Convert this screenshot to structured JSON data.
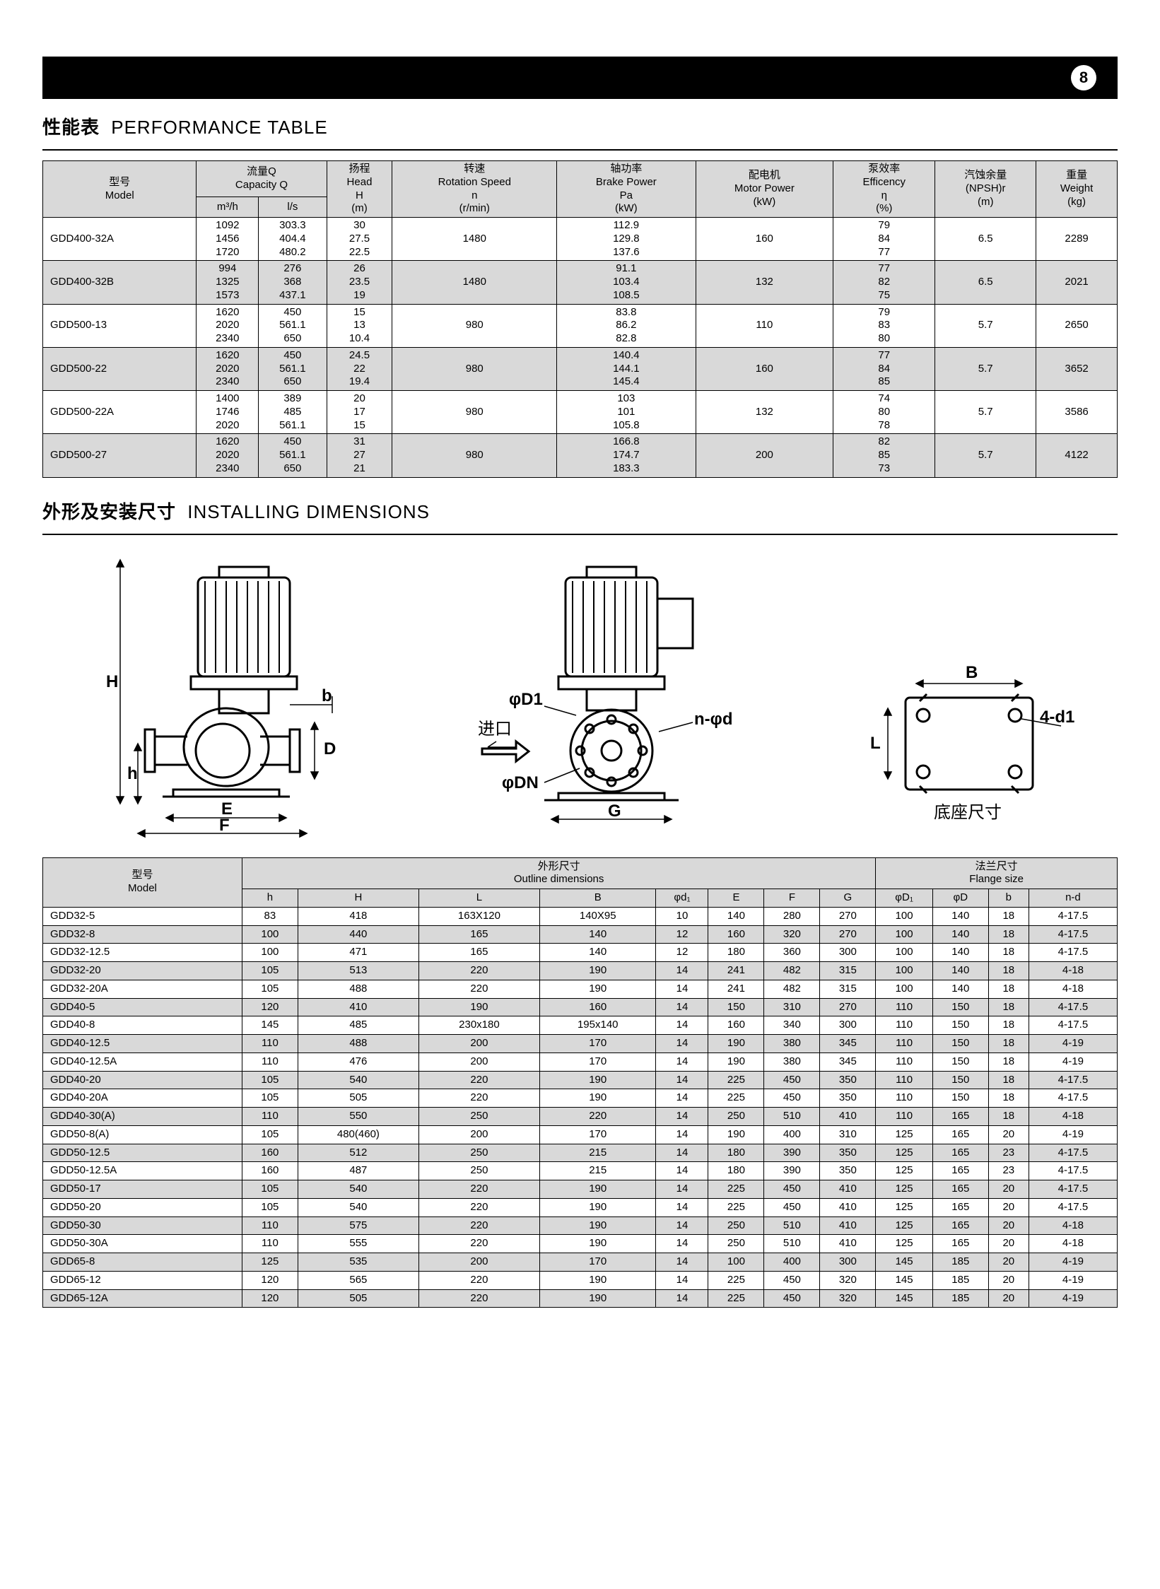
{
  "page_number": "8",
  "perf_title_cn": "性能表",
  "perf_title_en": "PERFORMANCE TABLE",
  "inst_title_cn": "外形及安装尺寸",
  "inst_title_en": "INSTALLING DIMENSIONS",
  "perf_headers": {
    "model_cn": "型号",
    "model_en": "Model",
    "capq_cn": "流量Q",
    "capq_en": "Capacity Q",
    "cap_m3h": "m³/h",
    "cap_ls": "l/s",
    "head_cn": "扬程",
    "head_en": "Head",
    "head_sym": "H",
    "head_unit": "(m)",
    "speed_cn": "转速",
    "speed_en": "Rotation Speed",
    "speed_sym": "n",
    "speed_unit": "(r/min)",
    "brake_cn": "轴功率",
    "brake_en": "Brake Power",
    "brake_sym": "Pa",
    "brake_unit": "(kW)",
    "motor_cn": "配电机",
    "motor_en": "Motor Power",
    "motor_unit": "(kW)",
    "eff_cn": "泵效率",
    "eff_en": "Efficency",
    "eff_sym": "η",
    "eff_unit": "(%)",
    "npsh_cn": "汽蚀余量",
    "npsh_en": "(NPSH)r",
    "npsh_unit": "(m)",
    "weight_cn": "重量",
    "weight_en": "Weight",
    "weight_unit": "(kg)"
  },
  "perf_rows": [
    {
      "model": "GDD400-32A",
      "m3h": "1092\n1456\n1720",
      "ls": "303.3\n404.4\n480.2",
      "head": "30\n27.5\n22.5",
      "speed": "1480",
      "brake": "112.9\n129.8\n137.6",
      "motor": "160",
      "eff": "79\n84\n77",
      "npsh": "6.5",
      "wt": "2289"
    },
    {
      "model": "GDD400-32B",
      "m3h": "994\n1325\n1573",
      "ls": "276\n368\n437.1",
      "head": "26\n23.5\n19",
      "speed": "1480",
      "brake": "91.1\n103.4\n108.5",
      "motor": "132",
      "eff": "77\n82\n75",
      "npsh": "6.5",
      "wt": "2021"
    },
    {
      "model": "GDD500-13",
      "m3h": "1620\n2020\n2340",
      "ls": "450\n561.1\n650",
      "head": "15\n13\n10.4",
      "speed": "980",
      "brake": "83.8\n86.2\n82.8",
      "motor": "110",
      "eff": "79\n83\n80",
      "npsh": "5.7",
      "wt": "2650"
    },
    {
      "model": "GDD500-22",
      "m3h": "1620\n2020\n2340",
      "ls": "450\n561.1\n650",
      "head": "24.5\n22\n19.4",
      "speed": "980",
      "brake": "140.4\n144.1\n145.4",
      "motor": "160",
      "eff": "77\n84\n85",
      "npsh": "5.7",
      "wt": "3652"
    },
    {
      "model": "GDD500-22A",
      "m3h": "1400\n1746\n2020",
      "ls": "389\n485\n561.1",
      "head": "20\n17\n15",
      "speed": "980",
      "brake": "103\n101\n105.8",
      "motor": "132",
      "eff": "74\n80\n78",
      "npsh": "5.7",
      "wt": "3586"
    },
    {
      "model": "GDD500-27",
      "m3h": "1620\n2020\n2340",
      "ls": "450\n561.1\n650",
      "head": "31\n27\n21",
      "speed": "980",
      "brake": "166.8\n174.7\n183.3",
      "motor": "200",
      "eff": "82\n85\n73",
      "npsh": "5.7",
      "wt": "4122"
    }
  ],
  "dim_group_headers": {
    "model_cn": "型号",
    "model_en": "Model",
    "outline_cn": "外形尺寸",
    "outline_en": "Outline dimensions",
    "flange_cn": "法兰尺寸",
    "flange_en": "Flange size"
  },
  "dim_cols": [
    "h",
    "H",
    "L",
    "B",
    "φd₁",
    "E",
    "F",
    "G",
    "φD₁",
    "φD",
    "b",
    "n-d"
  ],
  "dim_rows": [
    [
      "GDD32-5",
      "83",
      "418",
      "163X120",
      "140X95",
      "10",
      "140",
      "280",
      "270",
      "100",
      "140",
      "18",
      "4-17.5"
    ],
    [
      "GDD32-8",
      "100",
      "440",
      "165",
      "140",
      "12",
      "160",
      "320",
      "270",
      "100",
      "140",
      "18",
      "4-17.5"
    ],
    [
      "GDD32-12.5",
      "100",
      "471",
      "165",
      "140",
      "12",
      "180",
      "360",
      "300",
      "100",
      "140",
      "18",
      "4-17.5"
    ],
    [
      "GDD32-20",
      "105",
      "513",
      "220",
      "190",
      "14",
      "241",
      "482",
      "315",
      "100",
      "140",
      "18",
      "4-18"
    ],
    [
      "GDD32-20A",
      "105",
      "488",
      "220",
      "190",
      "14",
      "241",
      "482",
      "315",
      "100",
      "140",
      "18",
      "4-18"
    ],
    [
      "GDD40-5",
      "120",
      "410",
      "190",
      "160",
      "14",
      "150",
      "310",
      "270",
      "110",
      "150",
      "18",
      "4-17.5"
    ],
    [
      "GDD40-8",
      "145",
      "485",
      "230x180",
      "195x140",
      "14",
      "160",
      "340",
      "300",
      "110",
      "150",
      "18",
      "4-17.5"
    ],
    [
      "GDD40-12.5",
      "110",
      "488",
      "200",
      "170",
      "14",
      "190",
      "380",
      "345",
      "110",
      "150",
      "18",
      "4-19"
    ],
    [
      "GDD40-12.5A",
      "110",
      "476",
      "200",
      "170",
      "14",
      "190",
      "380",
      "345",
      "110",
      "150",
      "18",
      "4-19"
    ],
    [
      "GDD40-20",
      "105",
      "540",
      "220",
      "190",
      "14",
      "225",
      "450",
      "350",
      "110",
      "150",
      "18",
      "4-17.5"
    ],
    [
      "GDD40-20A",
      "105",
      "505",
      "220",
      "190",
      "14",
      "225",
      "450",
      "350",
      "110",
      "150",
      "18",
      "4-17.5"
    ],
    [
      "GDD40-30(A)",
      "110",
      "550",
      "250",
      "220",
      "14",
      "250",
      "510",
      "410",
      "110",
      "165",
      "18",
      "4-18"
    ],
    [
      "GDD50-8(A)",
      "105",
      "480(460)",
      "200",
      "170",
      "14",
      "190",
      "400",
      "310",
      "125",
      "165",
      "20",
      "4-19"
    ],
    [
      "GDD50-12.5",
      "160",
      "512",
      "250",
      "215",
      "14",
      "180",
      "390",
      "350",
      "125",
      "165",
      "23",
      "4-17.5"
    ],
    [
      "GDD50-12.5A",
      "160",
      "487",
      "250",
      "215",
      "14",
      "180",
      "390",
      "350",
      "125",
      "165",
      "23",
      "4-17.5"
    ],
    [
      "GDD50-17",
      "105",
      "540",
      "220",
      "190",
      "14",
      "225",
      "450",
      "410",
      "125",
      "165",
      "20",
      "4-17.5"
    ],
    [
      "GDD50-20",
      "105",
      "540",
      "220",
      "190",
      "14",
      "225",
      "450",
      "410",
      "125",
      "165",
      "20",
      "4-17.5"
    ],
    [
      "GDD50-30",
      "110",
      "575",
      "220",
      "190",
      "14",
      "250",
      "510",
      "410",
      "125",
      "165",
      "20",
      "4-18"
    ],
    [
      "GDD50-30A",
      "110",
      "555",
      "220",
      "190",
      "14",
      "250",
      "510",
      "410",
      "125",
      "165",
      "20",
      "4-18"
    ],
    [
      "GDD65-8",
      "125",
      "535",
      "200",
      "170",
      "14",
      "100",
      "400",
      "300",
      "145",
      "185",
      "20",
      "4-19"
    ],
    [
      "GDD65-12",
      "120",
      "565",
      "220",
      "190",
      "14",
      "225",
      "450",
      "320",
      "145",
      "185",
      "20",
      "4-19"
    ],
    [
      "GDD65-12A",
      "120",
      "505",
      "220",
      "190",
      "14",
      "225",
      "450",
      "320",
      "145",
      "185",
      "20",
      "4-19"
    ]
  ],
  "diagram_labels": {
    "H": "H",
    "h": "h",
    "b": "b",
    "D": "D",
    "E": "E",
    "F": "F",
    "G": "G",
    "B": "B",
    "L": "L",
    "inlet": "进口",
    "phiD1": "φD1",
    "phiDN": "φDN",
    "nphiD": "n-φd",
    "fourD1": "4-d1",
    "base_cn": "底座尺寸"
  },
  "colors": {
    "header_bg": "#d9d9d9",
    "line": "#000000",
    "page_bg": "#ffffff"
  }
}
